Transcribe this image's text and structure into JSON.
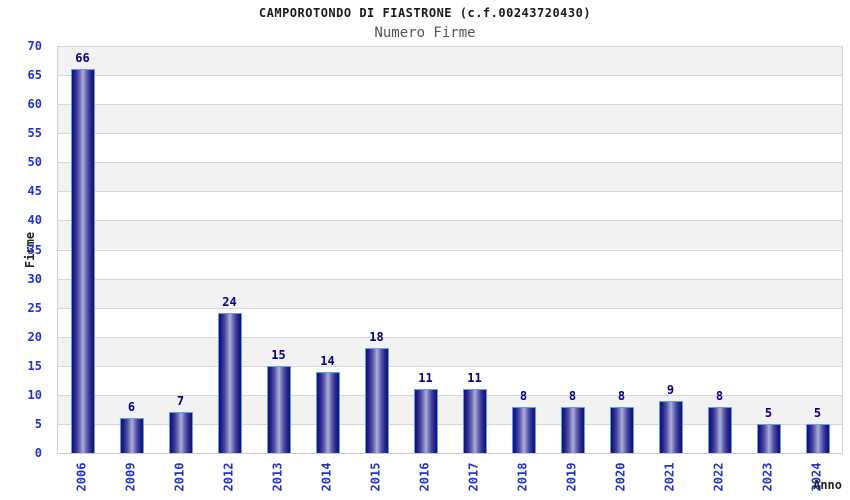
{
  "title": "CAMPOROTONDO DI FIASTRONE (c.f.00243720430)",
  "subtitle": "Numero Firme",
  "chart_data": {
    "type": "bar",
    "title": "CAMPOROTONDO DI FIASTRONE (c.f.00243720430)",
    "subtitle": "Numero Firme",
    "categories": [
      "2006",
      "2009",
      "2010",
      "2012",
      "2013",
      "2014",
      "2015",
      "2016",
      "2017",
      "2018",
      "2019",
      "2020",
      "2021",
      "2022",
      "2023",
      "2024"
    ],
    "values": [
      66,
      6,
      7,
      24,
      15,
      14,
      18,
      11,
      11,
      8,
      8,
      8,
      9,
      8,
      5,
      5
    ],
    "xlabel": "Anno",
    "ylabel": "Firme",
    "ylim": [
      0,
      70
    ],
    "ytick_step": 5,
    "grid": true,
    "legend_position": "none",
    "band_colors_alternating": true
  },
  "colors": {
    "bar_dark": "#0f0f78",
    "bar_light": "#b0b0dc",
    "bar_border": "#62a0e8",
    "axis_tick_label": "#2233cc",
    "value_label": "#000080",
    "band_gray": "#f2f2f2",
    "band_white": "#ffffff",
    "grid_line": "#d7d7d7",
    "title_color": "#1a1a1a",
    "subtitle_color": "#555555"
  }
}
